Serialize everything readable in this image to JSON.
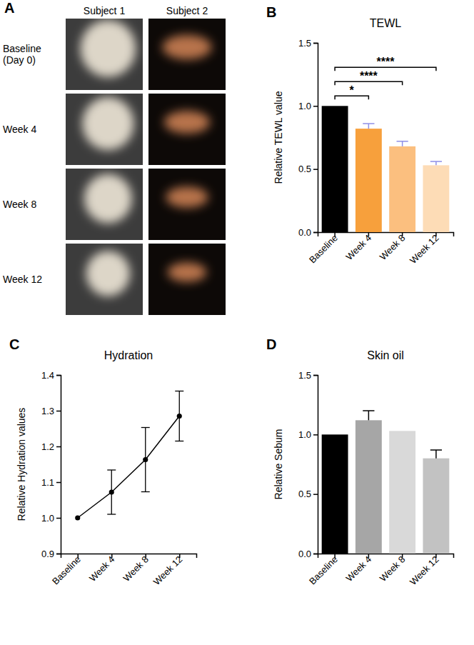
{
  "photo_panel": {
    "panel": "A",
    "columns": [
      "Subject 1",
      "Subject 2"
    ],
    "rows": [
      "Baseline (Day 0)",
      "Week 4",
      "Week 8",
      "Week 12"
    ]
  },
  "chart_data": [
    {
      "panel": "B",
      "type": "bar",
      "title": "TEWL",
      "y_label": "Relative TEWL value",
      "categories": [
        "Baseline",
        "Week 4",
        "Week 8",
        "Week 12"
      ],
      "values": [
        1.0,
        0.82,
        0.68,
        0.53
      ],
      "errors": [
        0,
        0.04,
        0.04,
        0.03
      ],
      "colors": [
        "#000000",
        "#f7a03c",
        "#fbbf7f",
        "#fddcb6"
      ],
      "ylim": [
        0,
        1.5
      ],
      "yticks": [
        {
          "value": 0,
          "label": "0.0"
        },
        {
          "value": 0.5,
          "label": "0.5"
        },
        {
          "value": 1,
          "label": "1.0"
        },
        {
          "value": 1.5,
          "label": "1.5"
        }
      ],
      "significance": [
        {
          "from": "Baseline",
          "to": "Week 4",
          "label": "*"
        },
        {
          "from": "Baseline",
          "to": "Week 8",
          "label": "****"
        },
        {
          "from": "Baseline",
          "to": "Week 12",
          "label": "****"
        }
      ]
    },
    {
      "panel": "C",
      "type": "line",
      "title": "Hydration",
      "y_label": "Relative Hydration values",
      "categories": [
        "Baseline",
        "Week 4",
        "Week 8",
        "Week 12"
      ],
      "values": [
        1.0,
        1.072,
        1.163,
        1.285
      ],
      "errors": [
        0,
        0.062,
        0.09,
        0.07
      ],
      "color": "#000000",
      "marker": "circle",
      "ylim": [
        0.9,
        1.4
      ],
      "yticks": [
        0.9,
        {
          "value": 1,
          "label": "1.0"
        },
        1.1,
        1.2,
        1.3,
        1.4
      ]
    },
    {
      "panel": "D",
      "type": "bar",
      "title": "Skin oil",
      "y_label": "Relative Sebum",
      "categories": [
        "Baseline",
        "Week 4",
        "Week 8",
        "Week 12"
      ],
      "values": [
        1.0,
        1.12,
        1.03,
        0.8
      ],
      "errors": [
        0,
        0.08,
        0,
        0.07
      ],
      "colors": [
        "#000000",
        "#a6a6a6",
        "#d9d9d9",
        "#c2c2c2"
      ],
      "ylim": [
        0,
        1.5
      ],
      "yticks": [
        {
          "value": 0,
          "label": "0.0"
        },
        {
          "value": 0.5,
          "label": "0.5"
        },
        {
          "value": 1,
          "label": "1.0"
        },
        {
          "value": 1.5,
          "label": "1.5"
        }
      ]
    }
  ]
}
